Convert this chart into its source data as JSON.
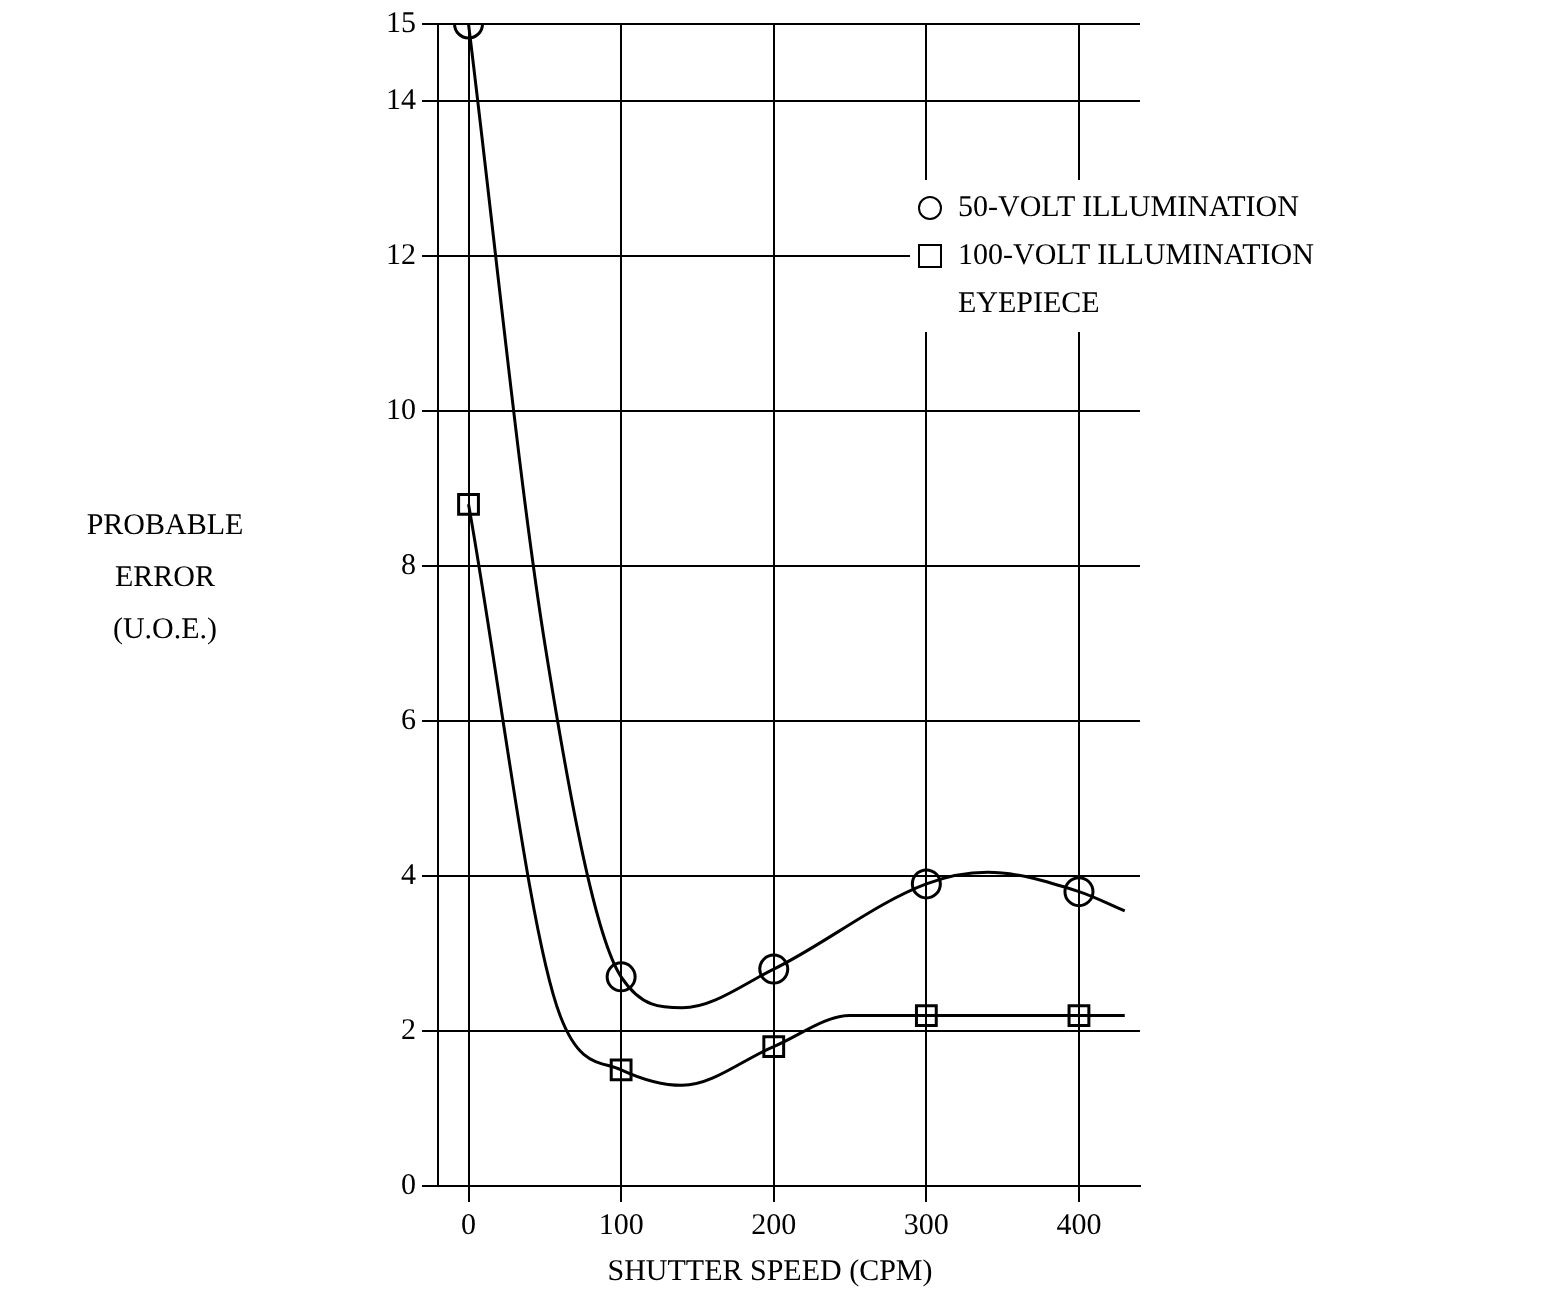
{
  "chart_data": {
    "type": "scatter",
    "xlabel": "SHUTTER SPEED (CPM)",
    "ylabel": "PROBABLE ERROR (U.O.E.)",
    "xlim": [
      -20,
      440
    ],
    "xticks": [
      0,
      100,
      200,
      300,
      400
    ],
    "ylim": [
      0,
      15
    ],
    "yticks": [
      0,
      2,
      4,
      6,
      8,
      10,
      12,
      14,
      15
    ],
    "grid": true,
    "legend": "top right",
    "series": [
      {
        "name": "50-VOLT ILLUMINATION",
        "marker": "circle",
        "color": "#000000",
        "x": [
          0,
          100,
          200,
          300,
          400
        ],
        "values": [
          15,
          2.7,
          2.8,
          3.9,
          3.8
        ]
      },
      {
        "name": "100-VOLT ILLUMINATION EYEPIECE",
        "marker": "square",
        "color": "#000000",
        "x": [
          0,
          100,
          200,
          300,
          400
        ],
        "values": [
          8.8,
          1.5,
          1.8,
          2.2,
          2.2
        ]
      },
      {
        "type": "line",
        "marker": "none",
        "color": "#000000",
        "x": [
          0,
          50,
          100,
          140,
          200,
          300,
          340,
          400,
          430
        ],
        "values": [
          15,
          7,
          2.7,
          2.3,
          2.8,
          3.9,
          4.05,
          3.8,
          3.55
        ]
      },
      {
        "type": "line",
        "marker": "none",
        "color": "#000000",
        "x": [
          0,
          60,
          100,
          140,
          200,
          250,
          300,
          400,
          430
        ],
        "values": [
          8.8,
          2.2,
          1.5,
          1.3,
          1.8,
          2.2,
          2.2,
          2.2,
          2.2
        ]
      }
    ]
  }
}
